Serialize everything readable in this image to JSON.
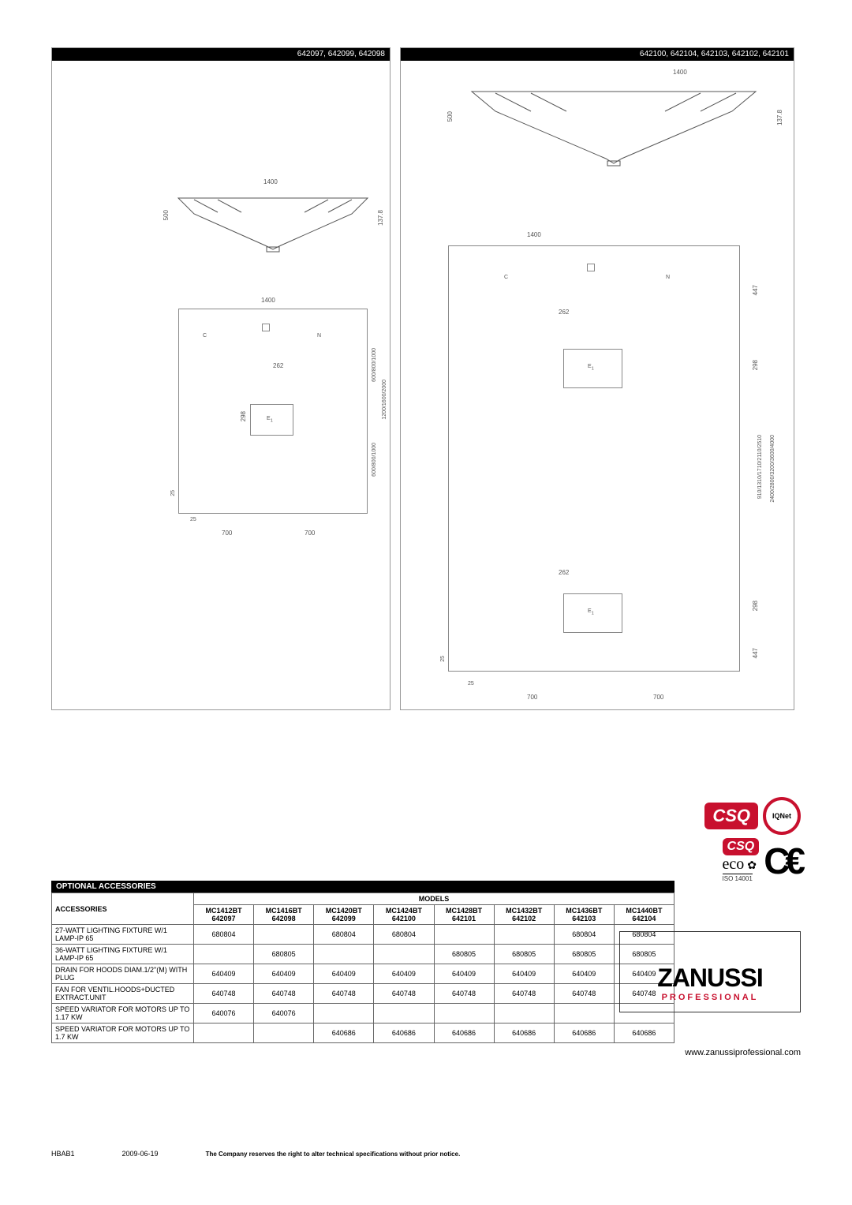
{
  "panels": {
    "left": {
      "header": "642097, 642099, 642098",
      "profile": {
        "width_label": "1400",
        "height_label": "500",
        "side_label": "137.8"
      },
      "plan": {
        "top_width": "1400",
        "inner_dim": "262",
        "inner_h": "298",
        "left_v1": "600/800/1000",
        "left_v2": "1200/1600/2000",
        "left_v3": "600/800/1000",
        "bottom_small1": "25",
        "bottom_small2": "25",
        "bottom_half1": "700",
        "bottom_half2": "700"
      }
    },
    "right": {
      "header": "642100, 642104, 642103, 642102, 642101",
      "profile": {
        "width_label": "1400",
        "height_label": "500",
        "side_label": "137.8"
      },
      "plan": {
        "top_width": "1400",
        "top_h": "447",
        "inner_dim": "262",
        "inner_h": "298",
        "right_v1": "910/1310/1710/2110/2510",
        "right_v2": "2400/2800/3200/3600/4000",
        "bottom_inner": "262",
        "bottom_inner_h": "298",
        "bottom_h": "447",
        "bottom_small1": "25",
        "bottom_small2": "25",
        "bottom_half1": "700",
        "bottom_half2": "700"
      }
    }
  },
  "table": {
    "section_title": "OPTIONAL ACCESSORIES",
    "accessories_header": "ACCESSORIES",
    "models_header": "MODELS",
    "columns": [
      {
        "model": "MC1412BT",
        "code": "642097"
      },
      {
        "model": "MC1416BT",
        "code": "642098"
      },
      {
        "model": "MC1420BT",
        "code": "642099"
      },
      {
        "model": "MC1424BT",
        "code": "642100"
      },
      {
        "model": "MC1428BT",
        "code": "642101"
      },
      {
        "model": "MC1432BT",
        "code": "642102"
      },
      {
        "model": "MC1436BT",
        "code": "642103"
      },
      {
        "model": "MC1440BT",
        "code": "642104"
      }
    ],
    "rows": [
      {
        "name": "27-WATT LIGHTING FIXTURE W/1 LAMP-IP 65",
        "vals": [
          "680804",
          "",
          "680804",
          "680804",
          "",
          "",
          "680804",
          "680804"
        ]
      },
      {
        "name": "36-WATT LIGHTING FIXTURE W/1 LAMP-IP 65",
        "vals": [
          "",
          "680805",
          "",
          "",
          "680805",
          "680805",
          "680805",
          "680805"
        ]
      },
      {
        "name": "DRAIN FOR HOODS DIAM.1/2\"(M) WITH PLUG",
        "vals": [
          "640409",
          "640409",
          "640409",
          "640409",
          "640409",
          "640409",
          "640409",
          "640409"
        ]
      },
      {
        "name": "FAN FOR VENTIL.HOODS+DUCTED EXTRACT.UNIT",
        "vals": [
          "640748",
          "640748",
          "640748",
          "640748",
          "640748",
          "640748",
          "640748",
          "640748"
        ]
      },
      {
        "name": "SPEED VARIATOR FOR MOTORS UP TO 1.17 KW",
        "vals": [
          "640076",
          "640076",
          "",
          "",
          "",
          "",
          "",
          ""
        ]
      },
      {
        "name": "SPEED VARIATOR FOR MOTORS UP TO 1.7 KW",
        "vals": [
          "",
          "",
          "640686",
          "640686",
          "640686",
          "640686",
          "640686",
          "640686"
        ]
      }
    ]
  },
  "certs": {
    "csq": "CSQ",
    "iqnet": "IQNet",
    "eco": "eco",
    "iso": "ISO 14001",
    "ce": "CE"
  },
  "brand": {
    "name": "ZANUSSI",
    "sub": "PROFESSIONAL",
    "url": "www.zanussiprofessional.com"
  },
  "footer": {
    "code": "HBAB1",
    "date": "2009-06-19",
    "notice": "The Company reserves the right to alter technical specifications without prior notice."
  }
}
